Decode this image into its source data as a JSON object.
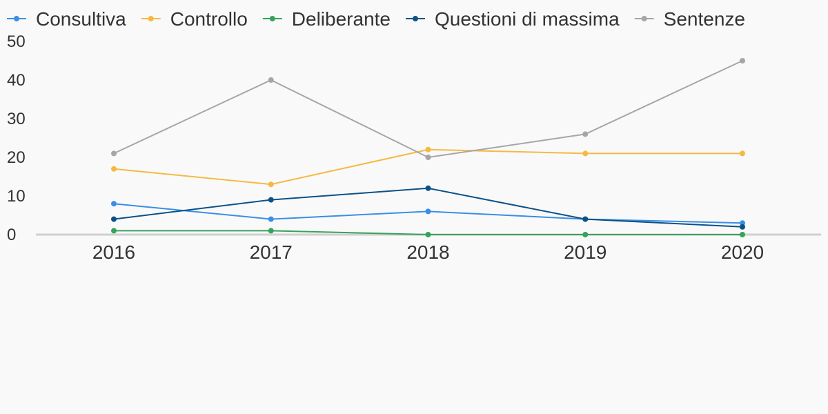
{
  "chart_data": {
    "type": "line",
    "x": [
      "2016",
      "2017",
      "2018",
      "2019",
      "2020"
    ],
    "ylim": [
      0,
      50
    ],
    "yticks": [
      0,
      10,
      20,
      30,
      40,
      50
    ],
    "grid": false,
    "legend": "top-left",
    "series": [
      {
        "name": "Consultiva",
        "color": "#3a8ee6",
        "values": [
          8,
          4,
          6,
          4,
          3
        ]
      },
      {
        "name": "Controllo",
        "color": "#f5b942",
        "values": [
          17,
          13,
          22,
          21,
          21
        ]
      },
      {
        "name": "Deliberante",
        "color": "#35a35a",
        "values": [
          1,
          1,
          0,
          0,
          0
        ]
      },
      {
        "name": "Questioni di massima",
        "color": "#0b5188",
        "values": [
          4,
          9,
          12,
          4,
          2
        ]
      },
      {
        "name": "Sentenze",
        "color": "#a6a6a6",
        "values": [
          21,
          40,
          20,
          26,
          45
        ]
      }
    ]
  }
}
